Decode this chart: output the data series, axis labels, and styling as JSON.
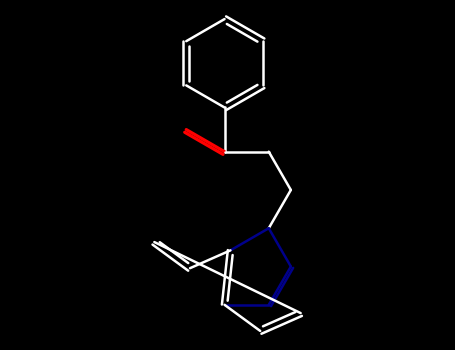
{
  "background_color": "#000000",
  "bond_color": "#ffffff",
  "nitrogen_color": "#00008b",
  "oxygen_color": "#ff0000",
  "bond_width": 1.8,
  "figsize": [
    4.55,
    3.5
  ],
  "dpi": 100
}
